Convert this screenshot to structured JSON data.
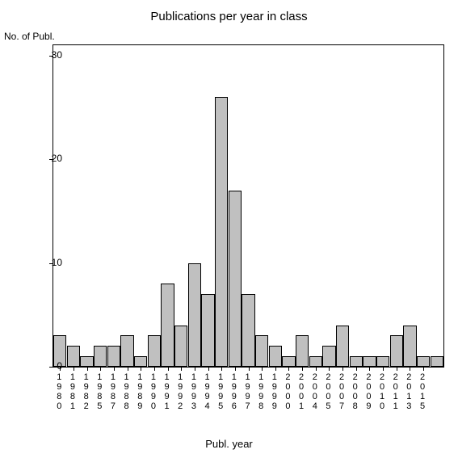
{
  "chart": {
    "type": "bar",
    "title": "Publications per year in class",
    "title_fontsize": 15,
    "ylabel": "No. of Publ.",
    "xlabel": "Publ. year",
    "label_fontsize": 12,
    "background_color": "#ffffff",
    "border_color": "#000000",
    "bar_color": "#c0c0c0",
    "bar_border_color": "#000000",
    "ylim": [
      0,
      31
    ],
    "yticks": [
      0,
      10,
      20,
      30
    ],
    "categories": [
      "1980",
      "1981",
      "1982",
      "1985",
      "1987",
      "1988",
      "1989",
      "1990",
      "1991",
      "1992",
      "1993",
      "1994",
      "1995",
      "1996",
      "1997",
      "1998",
      "1999",
      "2000",
      "2001",
      "2004",
      "2005",
      "2007",
      "2008",
      "2009",
      "2010",
      "2011",
      "2013",
      "2015"
    ],
    "values": [
      3,
      2,
      1,
      2,
      2,
      3,
      1,
      3,
      8,
      4,
      10,
      7,
      26,
      17,
      7,
      3,
      2,
      1,
      3,
      1,
      2,
      4,
      1,
      1,
      1,
      3,
      4,
      1
    ],
    "bar_gaps_after": [
      "2015"
    ],
    "trailing_gap_values": [
      1
    ]
  }
}
